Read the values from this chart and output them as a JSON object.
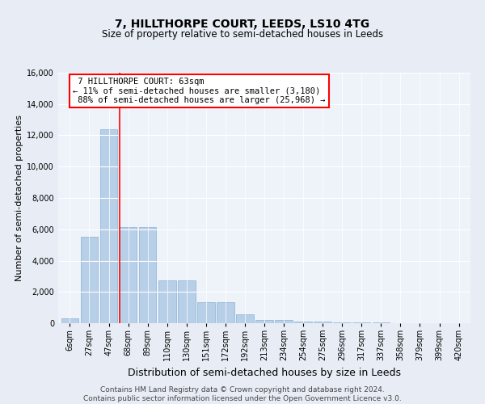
{
  "title": "7, HILLTHORPE COURT, LEEDS, LS10 4TG",
  "subtitle": "Size of property relative to semi-detached houses in Leeds",
  "xlabel": "Distribution of semi-detached houses by size in Leeds",
  "ylabel": "Number of semi-detached properties",
  "bar_labels": [
    "6sqm",
    "27sqm",
    "47sqm",
    "68sqm",
    "89sqm",
    "110sqm",
    "130sqm",
    "151sqm",
    "172sqm",
    "192sqm",
    "213sqm",
    "234sqm",
    "254sqm",
    "275sqm",
    "296sqm",
    "317sqm",
    "337sqm",
    "358sqm",
    "379sqm",
    "399sqm",
    "420sqm"
  ],
  "bar_values": [
    300,
    5500,
    12400,
    6150,
    6150,
    2750,
    2750,
    1350,
    1350,
    550,
    200,
    200,
    100,
    100,
    60,
    30,
    30,
    10,
    10,
    5,
    5
  ],
  "bar_color": "#b8cfe8",
  "bar_edgecolor": "#8ab0d4",
  "property_label": "7 HILLTHORPE COURT: 63sqm",
  "pct_smaller": 11,
  "pct_larger": 88,
  "n_smaller": 3180,
  "n_larger": 25968,
  "vline_bin_index": 2,
  "ylim": [
    0,
    16000
  ],
  "yticks": [
    0,
    2000,
    4000,
    6000,
    8000,
    10000,
    12000,
    14000,
    16000
  ],
  "bg_color": "#e8edf5",
  "plot_bg_color": "#eef3fa",
  "footer": "Contains HM Land Registry data © Crown copyright and database right 2024.\nContains public sector information licensed under the Open Government Licence v3.0.",
  "title_fontsize": 10,
  "subtitle_fontsize": 8.5,
  "xlabel_fontsize": 9,
  "ylabel_fontsize": 8,
  "tick_fontsize": 7,
  "footer_fontsize": 6.5,
  "annot_fontsize": 7.5
}
